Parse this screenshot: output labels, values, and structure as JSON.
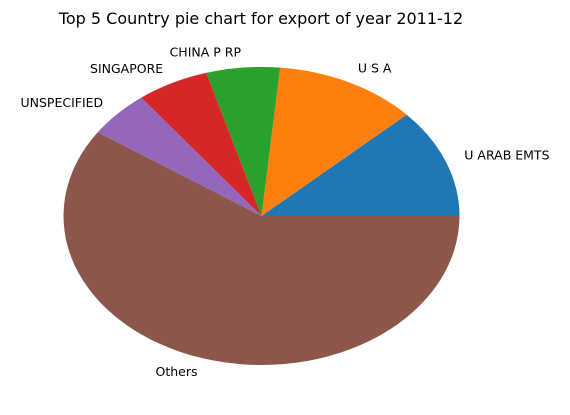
{
  "chart_data": {
    "type": "pie",
    "title": "Top 5 Country pie chart for export of year 2011-12",
    "slices": [
      {
        "label": "U ARAB EMTS",
        "value": 11.9,
        "color": "#1f77b4"
      },
      {
        "label": "U S A",
        "value": 11.6,
        "color": "#ff7f0e"
      },
      {
        "label": "CHINA P RP",
        "value": 6.0,
        "color": "#2ca02c"
      },
      {
        "label": "SINGAPORE",
        "value": 5.9,
        "color": "#d62728"
      },
      {
        "label": "UNSPECIFIED",
        "value": 5.1,
        "color": "#9467bd"
      },
      {
        "label": "Others",
        "value": 59.5,
        "color": "#8c564b"
      }
    ],
    "start_angle_deg": 0,
    "direction": "counterclockwise",
    "legend": "none"
  }
}
